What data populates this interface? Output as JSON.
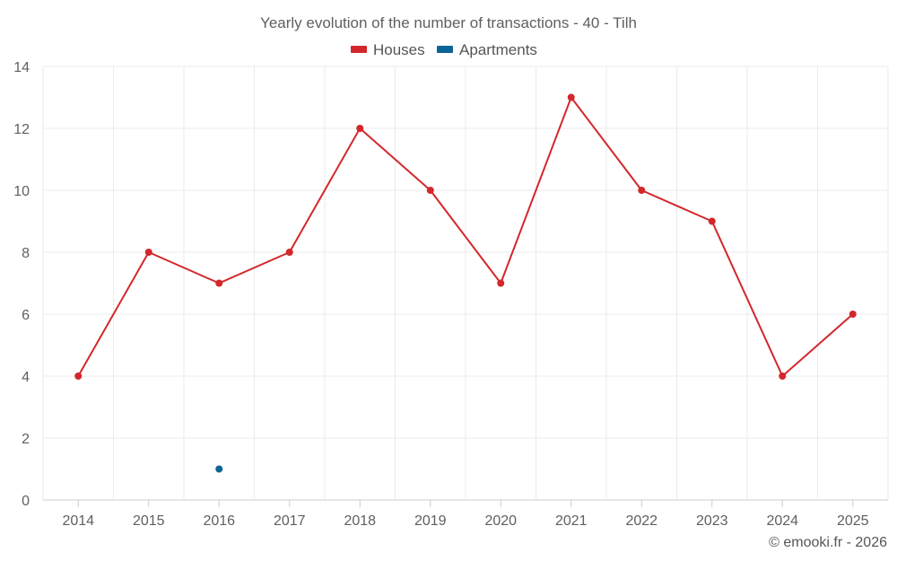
{
  "chart_data": {
    "type": "line",
    "title": "Yearly evolution of the number of transactions - 40 - Tilh",
    "xlabel": "",
    "ylabel": "",
    "categories": [
      "2014",
      "2015",
      "2016",
      "2017",
      "2018",
      "2019",
      "2020",
      "2021",
      "2022",
      "2023",
      "2024",
      "2025"
    ],
    "ylim": [
      0,
      14
    ],
    "yticks": [
      0,
      2,
      4,
      6,
      8,
      10,
      12,
      14
    ],
    "grid": true,
    "legend_position": "top-center",
    "series": [
      {
        "name": "Houses",
        "color": "#d3272b",
        "values": [
          4,
          8,
          7,
          8,
          12,
          10,
          7,
          13,
          10,
          9,
          4,
          6
        ]
      },
      {
        "name": "Apartments",
        "color": "#0b6596",
        "values": [
          null,
          null,
          1,
          null,
          null,
          null,
          null,
          null,
          null,
          null,
          null,
          null
        ]
      }
    ]
  },
  "credit": "© emooki.fr - 2026"
}
